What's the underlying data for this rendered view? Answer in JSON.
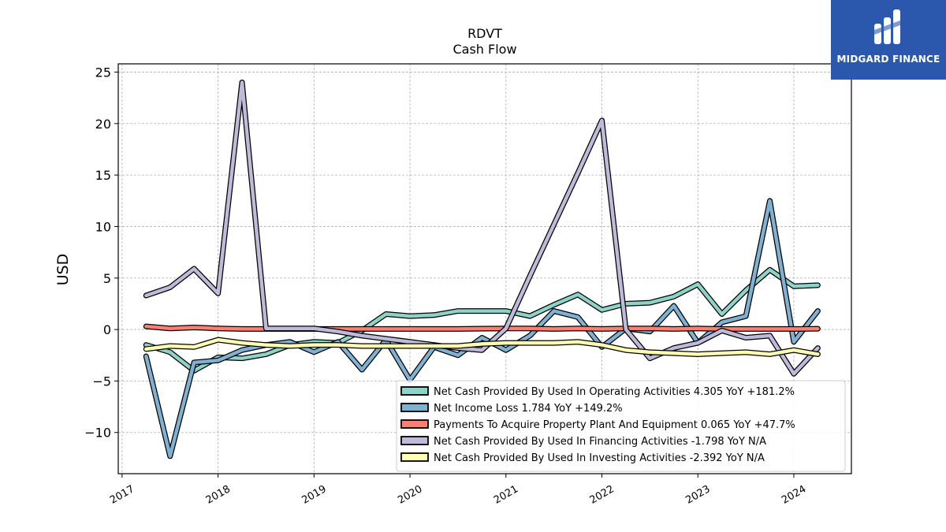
{
  "chart_data": {
    "type": "line",
    "title": "RDVT",
    "subtitle": "Cash Flow",
    "xlabel": "",
    "ylabel": "USD",
    "xlim": [
      2016.96,
      2024.6
    ],
    "ylim": [
      -14,
      25.8
    ],
    "x_ticks": [
      2017,
      2018,
      2019,
      2020,
      2021,
      2022,
      2023,
      2024
    ],
    "y_ticks": [
      -10,
      -5,
      0,
      5,
      10,
      15,
      20,
      25
    ],
    "y_tick_labels": [
      "−10",
      "−5",
      "0",
      "5",
      "10",
      "15",
      "20",
      "25"
    ],
    "grid": true,
    "legend_position": "lower-right",
    "x": [
      2017.25,
      2017.5,
      2017.75,
      2018.0,
      2018.25,
      2018.5,
      2018.75,
      2019.0,
      2019.25,
      2019.5,
      2019.75,
      2020.0,
      2020.25,
      2020.5,
      2020.75,
      2021.0,
      2021.25,
      2021.5,
      2021.75,
      2022.0,
      2022.25,
      2022.5,
      2022.75,
      2023.0,
      2023.25,
      2023.5,
      2023.75,
      2024.0,
      2024.25
    ],
    "series": [
      {
        "name": "Net Cash Provided By Used In Operating Activities  4.305 YoY +181.2%",
        "color": "#8dd3c7",
        "values": [
          -1.5,
          -2.2,
          -4.0,
          -2.7,
          -2.8,
          -2.4,
          -1.5,
          -1.2,
          -1.3,
          -0.1,
          1.5,
          1.3,
          1.4,
          1.8,
          1.8,
          1.8,
          1.3,
          2.4,
          3.4,
          1.9,
          2.5,
          2.6,
          3.2,
          4.4,
          1.5,
          3.8,
          5.8,
          4.2,
          4.3
        ]
      },
      {
        "name": "Net Income Loss  1.784 YoY +149.2%",
        "color": "#80b1d3",
        "values": [
          -2.6,
          -12.3,
          -3.2,
          -3.0,
          -2.0,
          -1.5,
          -1.2,
          -2.2,
          -1.2,
          -3.9,
          -1.0,
          -4.9,
          -1.7,
          -2.5,
          -0.8,
          -2.0,
          -0.6,
          1.8,
          1.2,
          -1.7,
          0.1,
          -0.2,
          2.3,
          -1.3,
          0.7,
          1.3,
          12.5,
          -1.2,
          1.8
        ]
      },
      {
        "name": "Payments To Acquire Property Plant And Equipment  0.065 YoY +47.7%",
        "color": "#fb8072",
        "values": [
          0.3,
          0.1,
          0.2,
          0.1,
          0.05,
          0.05,
          0.05,
          0.05,
          0.05,
          0.05,
          0.05,
          0.05,
          0.05,
          0.05,
          0.08,
          0.1,
          0.1,
          0.05,
          0.1,
          0.05,
          0.1,
          0.1,
          0.05,
          0.1,
          0.05,
          0.05,
          0.05,
          0.05,
          0.07
        ]
      },
      {
        "name": "Net Cash Provided By Used In Financing Activities  -1.798 YoY N/A",
        "color": "#bebada",
        "values": [
          3.3,
          4.1,
          5.9,
          3.5,
          24.0,
          0.1,
          0.1,
          0.1,
          -0.2,
          -0.6,
          -0.9,
          -1.2,
          -1.5,
          -1.8,
          -2.0,
          0.1,
          5.2,
          10.2,
          15.2,
          20.3,
          0.0,
          -2.8,
          -1.8,
          -1.3,
          -0.1,
          -0.8,
          -0.6,
          -4.3,
          -1.8
        ]
      },
      {
        "name": "Net Cash Provided By Used In Investing Activities  -2.392 YoY N/A",
        "color": "#ffffb3",
        "values": [
          -1.9,
          -1.6,
          -1.7,
          -1.0,
          -1.3,
          -1.5,
          -1.6,
          -1.5,
          -1.5,
          -1.6,
          -1.6,
          -1.6,
          -1.6,
          -1.6,
          -1.4,
          -1.3,
          -1.3,
          -1.3,
          -1.2,
          -1.5,
          -2.0,
          -2.2,
          -2.3,
          -2.4,
          -2.3,
          -2.2,
          -2.4,
          -2.0,
          -2.4
        ]
      }
    ]
  },
  "logo": {
    "text": "MIDGARD FINANCE",
    "color": "#2b58ad"
  }
}
